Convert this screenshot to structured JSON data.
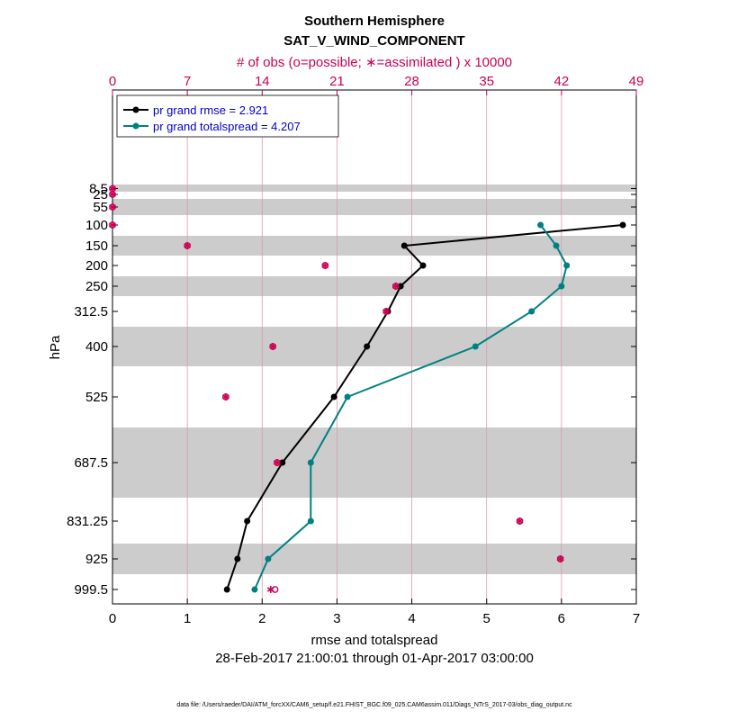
{
  "chart_data": {
    "type": "line",
    "title_line1": "Southern Hemisphere",
    "title_line2": "SAT_V_WIND_COMPONENT",
    "top_axis_label": "# of obs (o=possible; ∗=assimilated ) x 10000",
    "xlabel": "rmse and totalspread",
    "ylabel": "hPa",
    "date_range": "28-Feb-2017 21:00:01 through 01-Apr-2017 03:00:00",
    "footnote": "data file: /Users/raeder/DAI/ATM_forcXX/CAM6_setup/f.e21.FHIST_BGC.f09_025.CAM6assim.011/Diags_NTrS_2017-03/obs_diag_output.nc",
    "xlim": [
      0,
      7
    ],
    "x_ticks": [
      0,
      1,
      2,
      3,
      4,
      5,
      6,
      7
    ],
    "top_xlim": [
      0,
      49
    ],
    "top_ticks": [
      0,
      7,
      14,
      21,
      28,
      35,
      42,
      49
    ],
    "levels": [
      8.5,
      25,
      55,
      100,
      150,
      200,
      250,
      312.5,
      400,
      525,
      687.5,
      831.25,
      925,
      999.5
    ],
    "level_labels": [
      "8.5",
      "25",
      "55",
      "100",
      "150",
      "200",
      "250",
      "312.5",
      "400",
      "525",
      "687.5",
      "831.25",
      "925",
      "999.5"
    ],
    "shaded_bands_hpa": [
      [
        5,
        12
      ],
      [
        40,
        70
      ],
      [
        125,
        175
      ],
      [
        225,
        275
      ],
      [
        350,
        450
      ],
      [
        600,
        775
      ],
      [
        875,
        975
      ]
    ],
    "series": [
      {
        "name": "pr grand rmse",
        "legend": "pr grand rmse = 2.921",
        "color": "#000000",
        "levels": [
          100,
          150,
          200,
          250,
          312.5,
          400,
          525,
          687.5,
          831.25,
          925,
          999.5
        ],
        "values": [
          6.82,
          3.9,
          4.15,
          3.85,
          3.68,
          3.4,
          2.96,
          2.27,
          1.8,
          1.67,
          1.53
        ]
      },
      {
        "name": "pr grand totalspread",
        "legend": "pr grand totalspread = 4.207",
        "color": "#008080",
        "levels": [
          100,
          150,
          200,
          250,
          312.5,
          400,
          525,
          687.5,
          831.25,
          925,
          999.5
        ],
        "values": [
          5.72,
          5.93,
          6.07,
          6.0,
          5.6,
          4.85,
          3.14,
          2.65,
          2.65,
          2.08,
          1.9
        ]
      }
    ],
    "obs_counts_x10000": {
      "color": "#cc0055",
      "levels": [
        8.5,
        25,
        55,
        100,
        150,
        200,
        250,
        312.5,
        400,
        525,
        687.5,
        831.25,
        925,
        999.5
      ],
      "possible": [
        0,
        0,
        0,
        0,
        7,
        19.9,
        26.5,
        25.6,
        15,
        10.6,
        15.4,
        38.1,
        41.9,
        15.2
      ],
      "assimilated": [
        0,
        0,
        0,
        0,
        7,
        19.9,
        26.5,
        25.6,
        15,
        10.6,
        15.4,
        38.1,
        41.9,
        14.8
      ]
    }
  }
}
